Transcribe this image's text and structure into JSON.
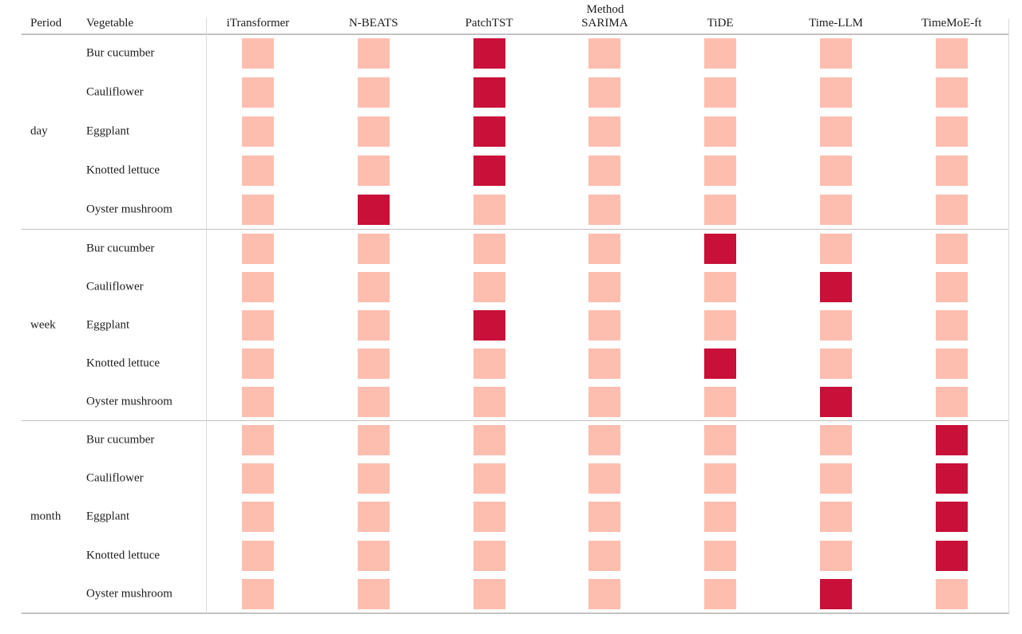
{
  "chart_data": {
    "type": "heatmap",
    "title": "Method",
    "header": {
      "period": "Period",
      "vegetable": "Vegetable"
    },
    "columns": [
      "iTransformer",
      "N-BEATS",
      "PatchTST",
      "SARIMA",
      "TiDE",
      "Time-LLM",
      "TimeMoE-ft"
    ],
    "periods": [
      "day",
      "week",
      "month"
    ],
    "vegetables": [
      "Bur cucumber",
      "Cauliflower",
      "Eggplant",
      "Knotted lettuce",
      "Oyster mushroom"
    ],
    "colors": {
      "cell": "#fdbeb0",
      "highlight": "#c81038"
    },
    "legend": "none",
    "cells": [
      {
        "period": "day",
        "vegetable": "Bur cucumber",
        "highlight": "PatchTST"
      },
      {
        "period": "day",
        "vegetable": "Cauliflower",
        "highlight": "PatchTST"
      },
      {
        "period": "day",
        "vegetable": "Eggplant",
        "highlight": "PatchTST"
      },
      {
        "period": "day",
        "vegetable": "Knotted lettuce",
        "highlight": "PatchTST"
      },
      {
        "period": "day",
        "vegetable": "Oyster mushroom",
        "highlight": "N-BEATS"
      },
      {
        "period": "week",
        "vegetable": "Bur cucumber",
        "highlight": "TiDE"
      },
      {
        "period": "week",
        "vegetable": "Cauliflower",
        "highlight": "Time-LLM"
      },
      {
        "period": "week",
        "vegetable": "Eggplant",
        "highlight": "PatchTST"
      },
      {
        "period": "week",
        "vegetable": "Knotted lettuce",
        "highlight": "TiDE"
      },
      {
        "period": "week",
        "vegetable": "Oyster mushroom",
        "highlight": "Time-LLM"
      },
      {
        "period": "month",
        "vegetable": "Bur cucumber",
        "highlight": "TimeMoE-ft"
      },
      {
        "period": "month",
        "vegetable": "Cauliflower",
        "highlight": "TimeMoE-ft"
      },
      {
        "period": "month",
        "vegetable": "Eggplant",
        "highlight": "TimeMoE-ft"
      },
      {
        "period": "month",
        "vegetable": "Knotted lettuce",
        "highlight": "TimeMoE-ft"
      },
      {
        "period": "month",
        "vegetable": "Oyster mushroom",
        "highlight": "Time-LLM"
      }
    ]
  }
}
